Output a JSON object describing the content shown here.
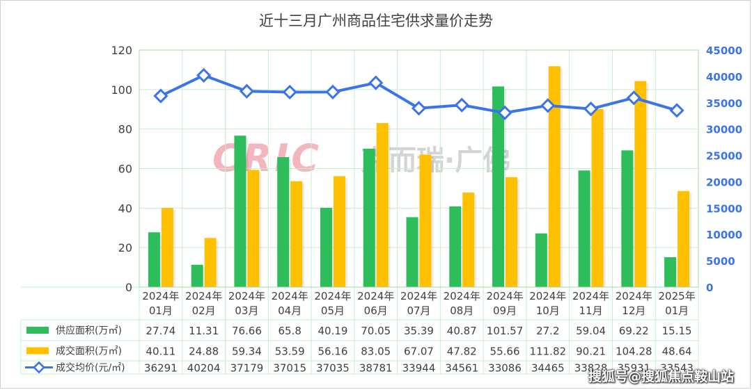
{
  "chart_data": {
    "type": "bar",
    "title": "近十三月广州商品住宅供求量价走势",
    "categories": [
      [
        "2024年",
        "01月"
      ],
      [
        "2024年",
        "02月"
      ],
      [
        "2024年",
        "03月"
      ],
      [
        "2024年",
        "04月"
      ],
      [
        "2024年",
        "05月"
      ],
      [
        "2024年",
        "06月"
      ],
      [
        "2024年",
        "07月"
      ],
      [
        "2024年",
        "08月"
      ],
      [
        "2024年",
        "09月"
      ],
      [
        "2024年",
        "10月"
      ],
      [
        "2024年",
        "11月"
      ],
      [
        "2024年",
        "12月"
      ],
      [
        "2025年",
        "01月"
      ]
    ],
    "series": [
      {
        "name": "供应面积(万㎡)",
        "kind": "bar",
        "axis": "left",
        "color": "#2DBE5B",
        "values": [
          27.74,
          11.31,
          76.66,
          65.8,
          40.19,
          70.05,
          35.39,
          40.87,
          101.57,
          27.2,
          59.04,
          69.22,
          15.15
        ],
        "labels": [
          "27.74",
          "11.31",
          "76.66",
          "65.8",
          "40.19",
          "70.05",
          "35.39",
          "40.87",
          "101.57",
          "27.2",
          "59.04",
          "69.22",
          "15.15"
        ]
      },
      {
        "name": "成交面积(万㎡)",
        "kind": "bar",
        "axis": "left",
        "color": "#FFC000",
        "values": [
          40.11,
          24.88,
          59.34,
          53.59,
          56.16,
          83.05,
          67.07,
          47.82,
          55.66,
          111.82,
          90.21,
          104.28,
          48.64
        ],
        "labels": [
          "40.11",
          "24.88",
          "59.34",
          "53.59",
          "56.16",
          "83.05",
          "67.07",
          "47.82",
          "55.66",
          "111.82",
          "90.21",
          "104.28",
          "48.64"
        ]
      },
      {
        "name": "成交均价(元/㎡)",
        "kind": "line",
        "axis": "right",
        "color": "#3B73E8",
        "values": [
          36291,
          40204,
          37179,
          37015,
          37035,
          38781,
          33944,
          34561,
          33086,
          34465,
          33828,
          35931,
          33543
        ],
        "labels": [
          "36291",
          "40204",
          "37179",
          "37015",
          "37035",
          "38781",
          "33944",
          "34561",
          "33086",
          "34465",
          "33828",
          "35931",
          "33543"
        ]
      }
    ],
    "y_left": {
      "min": 0,
      "max": 120,
      "ticks": [
        "0",
        "20",
        "40",
        "60",
        "80",
        "100",
        "120"
      ]
    },
    "y_right": {
      "min": 0,
      "max": 45000,
      "ticks": [
        "0",
        "5000",
        "10000",
        "15000",
        "20000",
        "25000",
        "30000",
        "35000",
        "40000",
        "45000"
      ]
    },
    "grid": true,
    "legend": "data-table"
  },
  "watermark": {
    "logo": "CRIC",
    "text": "克而瑞·广佛"
  },
  "footer_watermark": "搜狐号@搜狐焦点鞍山站",
  "colors": {
    "grid": "#C6EFCE",
    "axis_right": "#3B73E8",
    "text": "#404040"
  }
}
